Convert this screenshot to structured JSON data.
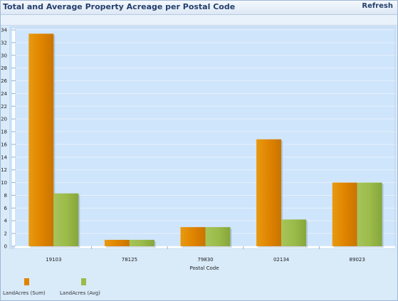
{
  "header": {
    "title": "Total and Average Property Acreage per Postal Code",
    "refresh_label": "Refresh"
  },
  "colors": {
    "sum": "#e08400",
    "avg": "#9bbb4a",
    "plot_bg": "#cfe5fb",
    "panel_bg": "#d9eaf9"
  },
  "chart_data": {
    "type": "bar",
    "title": "Total and Average Property Acreage per Postal Code",
    "xlabel": "Postal Code",
    "ylabel": "",
    "ylim": [
      0,
      34
    ],
    "yticks": [
      0,
      2,
      4,
      6,
      8,
      10,
      12,
      14,
      16,
      18,
      20,
      22,
      24,
      26,
      28,
      30,
      32,
      34
    ],
    "categories": [
      "19103",
      "78125",
      "79830",
      "02134",
      "89023"
    ],
    "series": [
      {
        "name": "LandAcres (Sum)",
        "values": [
          33.4,
          1.0,
          3.0,
          16.8,
          10.0
        ]
      },
      {
        "name": "LandAcres (Avg)",
        "values": [
          8.3,
          1.0,
          3.0,
          4.2,
          10.0
        ]
      }
    ],
    "grid": true,
    "legend_position": "bottom-left"
  }
}
